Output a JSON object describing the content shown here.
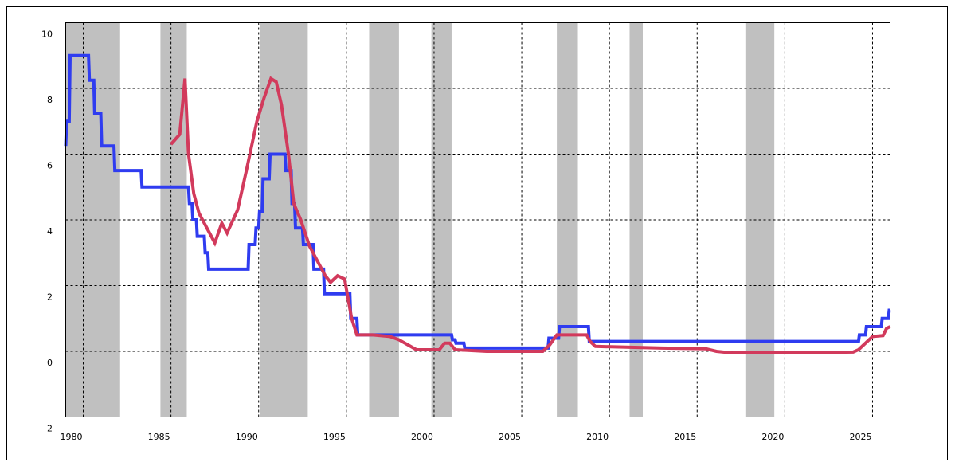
{
  "chart_data": {
    "type": "line",
    "xlim": [
      1979,
      2026
    ],
    "xticks": [
      1980,
      1985,
      1990,
      1995,
      2000,
      2005,
      2010,
      2015,
      2020,
      2025
    ],
    "ylim": [
      -2,
      10
    ],
    "yticks": [
      -2,
      0,
      2,
      4,
      6,
      8,
      10
    ],
    "grid": true,
    "shade_color": "#c0c0c0",
    "shaded_periods": [
      [
        1979,
        1982.1
      ],
      [
        1984.4,
        1985.9
      ],
      [
        1990.1,
        1992.8
      ],
      [
        1996.3,
        1998.0
      ],
      [
        1999.85,
        2001.0
      ],
      [
        2007.0,
        2008.2
      ],
      [
        2011.15,
        2011.9
      ],
      [
        2017.75,
        2019.4
      ]
    ],
    "series": [
      {
        "color": "#2f3cf0",
        "x": [
          1979.0,
          1979.05,
          1979.2,
          1979.25,
          1980.3,
          1980.35,
          1980.6,
          1980.65,
          1981.0,
          1981.05,
          1981.75,
          1981.8,
          1983.3,
          1983.35,
          1986.0,
          1986.05,
          1986.2,
          1986.25,
          1986.45,
          1986.5,
          1986.9,
          1986.95,
          1987.1,
          1987.15,
          1989.4,
          1989.45,
          1989.8,
          1989.85,
          1990.0,
          1990.05,
          1990.2,
          1990.25,
          1990.6,
          1990.65,
          1991.5,
          1991.55,
          1991.85,
          1991.9,
          1992.05,
          1992.1,
          1992.5,
          1992.55,
          1993.1,
          1993.15,
          1993.7,
          1993.75,
          1995.2,
          1995.25,
          1995.6,
          1995.65,
          2001.0,
          2001.05,
          2001.2,
          2001.25,
          2001.7,
          2001.75,
          2006.5,
          2006.55,
          2007.1,
          2007.15,
          2008.8,
          2008.85,
          2024.2,
          2024.25,
          2024.6,
          2024.65,
          2025.5,
          2025.55,
          2025.9,
          2025.95,
          2026.0
        ],
        "values": [
          6.25,
          7.0,
          7.0,
          9.0,
          9.0,
          8.25,
          8.25,
          7.25,
          7.25,
          6.25,
          6.25,
          5.5,
          5.5,
          5.0,
          5.0,
          4.5,
          4.5,
          4.0,
          4.0,
          3.5,
          3.5,
          3.0,
          3.0,
          2.5,
          2.5,
          3.25,
          3.25,
          3.75,
          3.75,
          4.25,
          4.25,
          5.25,
          5.25,
          6.0,
          6.0,
          5.5,
          5.5,
          4.5,
          4.5,
          3.75,
          3.75,
          3.25,
          3.25,
          2.5,
          2.5,
          1.75,
          1.75,
          1.0,
          1.0,
          0.5,
          0.5,
          0.35,
          0.35,
          0.25,
          0.25,
          0.1,
          0.1,
          0.4,
          0.4,
          0.75,
          0.75,
          0.3,
          0.3,
          0.5,
          0.5,
          0.75,
          0.75,
          1.0,
          1.0,
          1.25,
          1.25
        ]
      },
      {
        "color": "#d23a5c",
        "x": [
          1985.0,
          1985.5,
          1985.8,
          1986.0,
          1986.3,
          1986.6,
          1987.0,
          1987.5,
          1987.9,
          1988.2,
          1988.8,
          1989.3,
          1989.9,
          1990.3,
          1990.7,
          1991.0,
          1991.3,
          1991.7,
          1992.0,
          1992.4,
          1992.9,
          1993.4,
          1993.8,
          1994.1,
          1994.5,
          1994.9,
          1995.3,
          1995.6,
          1996.5,
          1997.5,
          1998.0,
          1998.5,
          1999.0,
          2000.3,
          2000.6,
          2000.9,
          2001.2,
          2003.0,
          2006.2,
          2006.6,
          2007.0,
          2008.7,
          2008.9,
          2009.2,
          2013.0,
          2015.5,
          2016.1,
          2017.0,
          2020.0,
          2023.9,
          2024.2,
          2024.5,
          2025.0,
          2025.6,
          2025.8,
          2026.0
        ],
        "values": [
          6.3,
          6.6,
          8.3,
          6.0,
          4.8,
          4.2,
          3.8,
          3.3,
          3.9,
          3.6,
          4.3,
          5.5,
          7.0,
          7.7,
          8.3,
          8.2,
          7.5,
          6.0,
          4.5,
          4.0,
          3.2,
          2.7,
          2.3,
          2.1,
          2.3,
          2.2,
          1.0,
          0.5,
          0.5,
          0.45,
          0.35,
          0.2,
          0.05,
          0.05,
          0.25,
          0.25,
          0.05,
          0.0,
          0.0,
          0.2,
          0.5,
          0.5,
          0.3,
          0.15,
          0.1,
          0.08,
          0.0,
          -0.05,
          -0.05,
          -0.02,
          0.05,
          0.2,
          0.45,
          0.48,
          0.7,
          0.75
        ]
      }
    ]
  }
}
